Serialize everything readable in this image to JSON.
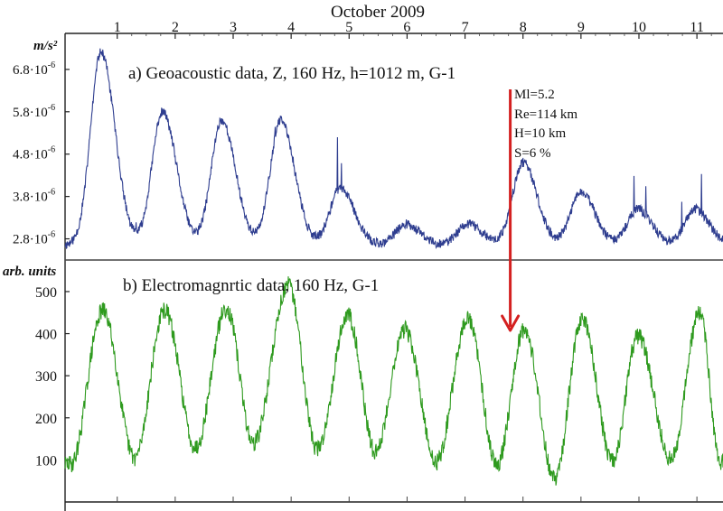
{
  "figure": {
    "title": "October  2009"
  },
  "chart_data": [
    {
      "type": "line",
      "panel": "a",
      "title": "a) Geoacoustic data, Z, 160 Hz, h=1012 m, G-1",
      "ylabel": "m/s²",
      "y_ticks": [
        {
          "value": 6.8e-06,
          "base": "6.8·10",
          "exp": "-6"
        },
        {
          "value": 5.8e-06,
          "base": "5.8·10",
          "exp": "-6"
        },
        {
          "value": 4.8e-06,
          "base": "4.8·10",
          "exp": "-6"
        },
        {
          "value": 3.8e-06,
          "base": "3.8·10",
          "exp": "-6"
        },
        {
          "value": 2.8e-06,
          "base": "2.8·10",
          "exp": "-6"
        }
      ],
      "x_ticks": [
        "1",
        "2",
        "3",
        "4",
        "5",
        "6",
        "7",
        "8",
        "9",
        "10",
        "11"
      ],
      "xlim": [
        0.1,
        11.45
      ],
      "ylim": [
        2.3e-06,
        7.65e-06
      ],
      "color": "#2e3d8f",
      "peaks": [
        {
          "x": 0.72,
          "y": 7.2e-06
        },
        {
          "x": 1.78,
          "y": 5.8e-06
        },
        {
          "x": 2.8,
          "y": 5.6e-06
        },
        {
          "x": 3.82,
          "y": 5.6e-06
        },
        {
          "x": 4.85,
          "y": 4e-06
        },
        {
          "x": 5.98,
          "y": 3.15e-06
        },
        {
          "x": 7.05,
          "y": 3.15e-06
        },
        {
          "x": 8.0,
          "y": 4.6e-06
        },
        {
          "x": 9.0,
          "y": 3.9e-06
        },
        {
          "x": 9.98,
          "y": 3.5e-06
        },
        {
          "x": 10.97,
          "y": 3.5e-06
        }
      ],
      "baseline": 2.65e-06,
      "annotations": [
        "Ml=5.2",
        "Re=114 km",
        "H=10 km",
        "S=6 %"
      ],
      "event_x": 7.78
    },
    {
      "type": "line",
      "panel": "b",
      "title": "b) Electromagnrtic data, 160 Hz,  G-1",
      "ylabel": "arb. units",
      "y_ticks": [
        500,
        400,
        300,
        200,
        100
      ],
      "x_ticks": [
        "1",
        "2",
        "3",
        "4",
        "5",
        "6",
        "7",
        "8",
        "9",
        "10",
        "11"
      ],
      "xlim": [
        0.1,
        11.45
      ],
      "ylim": [
        0,
        575
      ],
      "color": "#2e9a1e",
      "peaks": [
        {
          "x": 0.75,
          "y": 455
        },
        {
          "x": 1.82,
          "y": 455
        },
        {
          "x": 2.88,
          "y": 460
        },
        {
          "x": 3.95,
          "y": 515
        },
        {
          "x": 4.98,
          "y": 445
        },
        {
          "x": 5.96,
          "y": 410
        },
        {
          "x": 7.05,
          "y": 435
        },
        {
          "x": 8.02,
          "y": 410
        },
        {
          "x": 9.02,
          "y": 435
        },
        {
          "x": 9.98,
          "y": 395
        },
        {
          "x": 11.05,
          "y": 450
        }
      ],
      "troughs": [
        {
          "x": 0.2,
          "y": 90
        },
        {
          "x": 1.3,
          "y": 105
        },
        {
          "x": 2.35,
          "y": 130
        },
        {
          "x": 3.35,
          "y": 140
        },
        {
          "x": 4.45,
          "y": 125
        },
        {
          "x": 5.45,
          "y": 120
        },
        {
          "x": 6.5,
          "y": 95
        },
        {
          "x": 7.55,
          "y": 90
        },
        {
          "x": 8.55,
          "y": 55
        },
        {
          "x": 9.55,
          "y": 95
        },
        {
          "x": 10.55,
          "y": 100
        },
        {
          "x": 11.4,
          "y": 95
        }
      ]
    }
  ],
  "arrow_color": "#d42020"
}
